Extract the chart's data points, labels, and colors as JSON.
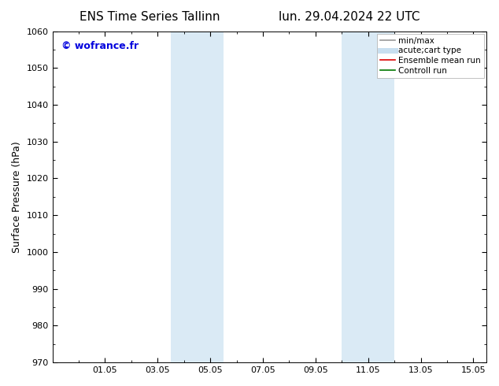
{
  "title_left": "ENS Time Series Tallinn",
  "title_right": "lun. 29.04.2024 22 UTC",
  "ylabel": "Surface Pressure (hPa)",
  "ylim": [
    970,
    1060
  ],
  "yticks": [
    970,
    980,
    990,
    1000,
    1010,
    1020,
    1030,
    1040,
    1050,
    1060
  ],
  "xlim": [
    0.0,
    16.5
  ],
  "xtick_labels": [
    "01.05",
    "03.05",
    "05.05",
    "07.05",
    "09.05",
    "11.05",
    "13.05",
    "15.05"
  ],
  "xtick_positions": [
    2,
    4,
    6,
    8,
    10,
    12,
    14,
    16
  ],
  "watermark": "© wofrance.fr",
  "watermark_color": "#0000dd",
  "shaded_bands": [
    {
      "x_start": 4.5,
      "x_end": 5.5
    },
    {
      "x_start": 5.5,
      "x_end": 6.5
    },
    {
      "x_start": 11.0,
      "x_end": 12.0
    },
    {
      "x_start": 12.0,
      "x_end": 13.0
    }
  ],
  "band_color": "#daeaf5",
  "background_color": "#ffffff",
  "legend_entries": [
    {
      "label": "min/max",
      "color": "#999999",
      "lw": 1.2,
      "type": "line"
    },
    {
      "label": "acute;cart type",
      "color": "#c8dff0",
      "lw": 5,
      "type": "line"
    },
    {
      "label": "Ensemble mean run",
      "color": "#dd0000",
      "lw": 1.2,
      "type": "line"
    },
    {
      "label": "Controll run",
      "color": "#007700",
      "lw": 1.2,
      "type": "line"
    }
  ],
  "title_fontsize": 11,
  "tick_fontsize": 8,
  "label_fontsize": 9,
  "legend_fontsize": 7.5,
  "watermark_fontsize": 9
}
